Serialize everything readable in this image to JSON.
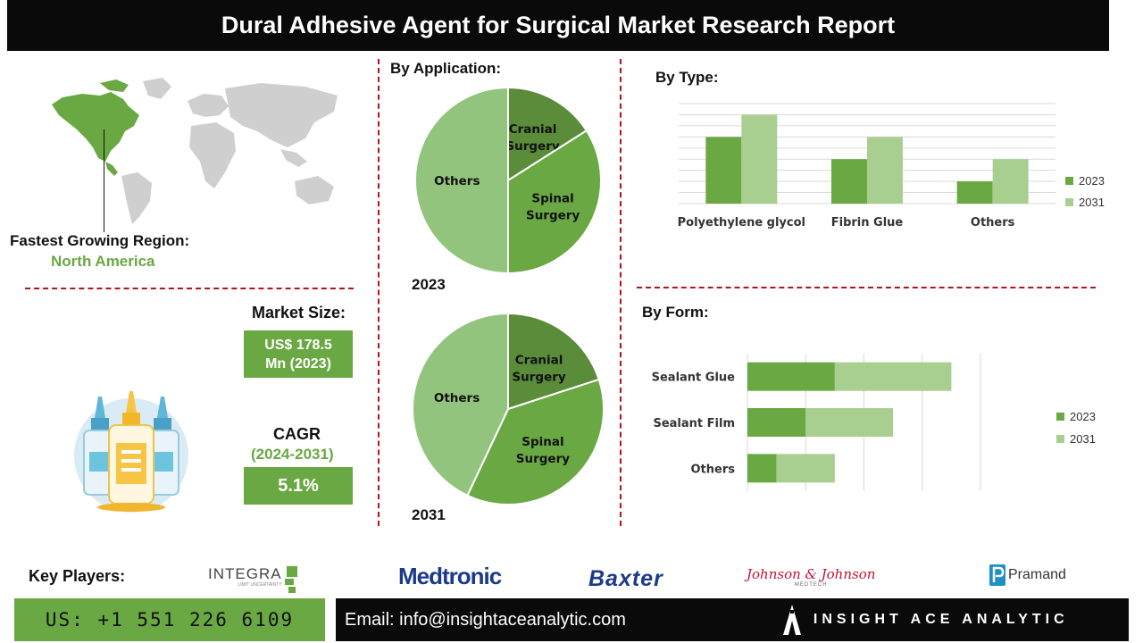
{
  "title": "Dural Adhesive Agent for Surgical Market Research Report",
  "region": {
    "label": "Fastest Growing Region:",
    "value": "North America"
  },
  "market_size": {
    "label": "Market Size:",
    "value_line1": "US$ 178.5",
    "value_line2": "Mn (2023)"
  },
  "cagr": {
    "label": "CAGR",
    "period": "(2024-2031)",
    "value": "5.1%"
  },
  "sections": {
    "application": "By Application:",
    "type": "By Type:",
    "form": "By Form:"
  },
  "key_players": {
    "label": "Key Players:",
    "logos": [
      "INTEGRA",
      "Medtronic",
      "Baxter",
      "Johnson & Johnson",
      "Pramand"
    ],
    "integra_tagline": "LIMIT UNCERTAINTY",
    "jnj_tagline": "MEDTECH"
  },
  "footer": {
    "phone": "US: +1 551 226 6109",
    "email": "Email: info@insightaceanalytic.com",
    "brand": "INSIGHT ACE ANALYTIC"
  },
  "colors": {
    "dark_green": "#5a8c3a",
    "mid_green": "#6aa843",
    "light_green": "#93c47d",
    "pale_green": "#a8cf90",
    "accent_red": "#b5121b"
  },
  "chart_data": [
    {
      "type": "pie",
      "title": "2023",
      "categories": [
        "Cranial Surgery",
        "Spinal Surgery",
        "Others"
      ],
      "values": [
        16,
        34,
        50
      ],
      "colors": [
        "#5a8c3a",
        "#6aa843",
        "#93c47d"
      ]
    },
    {
      "type": "pie",
      "title": "2031",
      "categories": [
        "Cranial Surgery",
        "Spinal Surgery",
        "Others"
      ],
      "values": [
        20,
        37,
        43
      ],
      "colors": [
        "#5a8c3a",
        "#6aa843",
        "#93c47d"
      ]
    },
    {
      "type": "bar",
      "title": "By Type:",
      "categories": [
        "Polyethylene glycol",
        "Fibrin Glue",
        "Others"
      ],
      "series": [
        {
          "name": "2023",
          "values": [
            3,
            2,
            1
          ],
          "color": "#6aa843"
        },
        {
          "name": "2031",
          "values": [
            4,
            3,
            2
          ],
          "color": "#a8cf90"
        }
      ],
      "ylim": [
        0,
        4.5
      ],
      "grid": true,
      "legend": "right"
    },
    {
      "type": "bar",
      "orientation": "horizontal-stacked",
      "title": "By Form:",
      "categories": [
        "Sealant Glue",
        "Sealant Film",
        "Others"
      ],
      "series": [
        {
          "name": "2023",
          "values": [
            3,
            2,
            1
          ],
          "color": "#6aa843"
        },
        {
          "name": "2031",
          "values": [
            4,
            3,
            2
          ],
          "color": "#a8cf90"
        }
      ],
      "xlim": [
        0,
        8
      ],
      "grid": true,
      "legend": "right"
    }
  ]
}
